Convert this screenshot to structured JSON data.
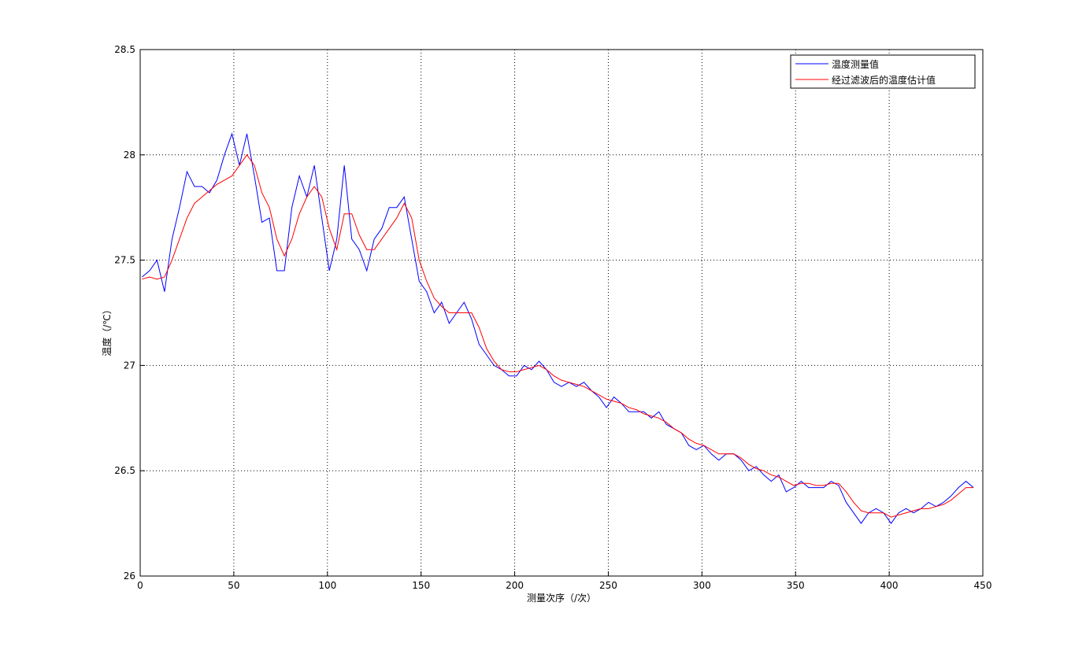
{
  "chart_data": {
    "type": "line",
    "xlabel": "测量次序（/次）",
    "ylabel": "温度（/℃）",
    "x": [
      1,
      5,
      9,
      13,
      17,
      21,
      25,
      29,
      33,
      37,
      41,
      45,
      49,
      53,
      57,
      61,
      65,
      69,
      73,
      77,
      81,
      85,
      89,
      93,
      97,
      101,
      105,
      109,
      113,
      117,
      121,
      125,
      129,
      133,
      137,
      141,
      145,
      149,
      153,
      157,
      161,
      165,
      169,
      173,
      177,
      181,
      185,
      189,
      193,
      197,
      201,
      205,
      209,
      213,
      217,
      221,
      225,
      229,
      233,
      237,
      241,
      245,
      249,
      253,
      257,
      261,
      265,
      269,
      273,
      277,
      281,
      285,
      289,
      293,
      297,
      301,
      305,
      309,
      313,
      317,
      321,
      325,
      329,
      333,
      337,
      341,
      345,
      349,
      353,
      357,
      361,
      365,
      369,
      373,
      377,
      381,
      385,
      389,
      393,
      397,
      401,
      405,
      409,
      413,
      417,
      421,
      425,
      429,
      433,
      437,
      441,
      445
    ],
    "series": [
      {
        "name": "温度测量值",
        "color": "#0000ff",
        "values": [
          27.42,
          27.45,
          27.5,
          27.35,
          27.6,
          27.75,
          27.92,
          27.85,
          27.85,
          27.82,
          27.88,
          28.0,
          28.1,
          27.95,
          28.1,
          27.9,
          27.68,
          27.7,
          27.45,
          27.45,
          27.75,
          27.9,
          27.8,
          27.95,
          27.7,
          27.45,
          27.6,
          27.95,
          27.6,
          27.55,
          27.45,
          27.6,
          27.65,
          27.75,
          27.75,
          27.8,
          27.6,
          27.4,
          27.35,
          27.25,
          27.3,
          27.2,
          27.25,
          27.3,
          27.22,
          27.1,
          27.05,
          27.0,
          26.98,
          26.95,
          26.95,
          27.0,
          26.98,
          27.02,
          26.98,
          26.92,
          26.9,
          26.92,
          26.9,
          26.92,
          26.88,
          26.85,
          26.8,
          26.85,
          26.82,
          26.78,
          26.78,
          26.78,
          26.75,
          26.78,
          26.72,
          26.7,
          26.68,
          26.62,
          26.6,
          26.62,
          26.58,
          26.55,
          26.58,
          26.58,
          26.55,
          26.5,
          26.52,
          26.48,
          26.45,
          26.48,
          26.4,
          26.42,
          26.45,
          26.42,
          26.42,
          26.42,
          26.45,
          26.43,
          26.35,
          26.3,
          26.25,
          26.3,
          26.32,
          26.3,
          26.25,
          26.3,
          26.32,
          26.3,
          26.32,
          26.35,
          26.33,
          26.35,
          26.38,
          26.42,
          26.45,
          26.42
        ]
      },
      {
        "name": "经过滤波后的温度估计值",
        "color": "#ff0000",
        "values": [
          27.41,
          27.42,
          27.41,
          27.42,
          27.5,
          27.6,
          27.7,
          27.77,
          27.8,
          27.83,
          27.86,
          27.88,
          27.9,
          27.95,
          28.0,
          27.95,
          27.82,
          27.75,
          27.6,
          27.52,
          27.6,
          27.72,
          27.8,
          27.85,
          27.8,
          27.65,
          27.55,
          27.72,
          27.72,
          27.62,
          27.55,
          27.55,
          27.6,
          27.65,
          27.7,
          27.77,
          27.7,
          27.5,
          27.4,
          27.32,
          27.28,
          27.25,
          27.25,
          27.25,
          27.25,
          27.18,
          27.08,
          27.02,
          26.98,
          26.97,
          26.97,
          26.98,
          26.99,
          27.0,
          26.98,
          26.95,
          26.93,
          26.92,
          26.91,
          26.9,
          26.88,
          26.86,
          26.84,
          26.83,
          26.82,
          26.8,
          26.79,
          26.77,
          26.76,
          26.75,
          26.73,
          26.7,
          26.68,
          26.65,
          26.63,
          26.62,
          26.6,
          26.58,
          26.58,
          26.58,
          26.56,
          26.53,
          26.51,
          26.5,
          26.48,
          26.47,
          26.45,
          26.43,
          26.44,
          26.44,
          26.43,
          26.43,
          26.44,
          26.44,
          26.4,
          26.35,
          26.31,
          26.3,
          26.3,
          26.3,
          26.28,
          26.29,
          26.3,
          26.31,
          26.32,
          26.32,
          26.33,
          26.34,
          26.36,
          26.39,
          26.42,
          26.42
        ]
      }
    ],
    "xlim": [
      0,
      450
    ],
    "xticks": [
      0,
      50,
      100,
      150,
      200,
      250,
      300,
      350,
      400,
      450
    ],
    "ylim": [
      26,
      28.5
    ],
    "yticks": [
      26,
      26.5,
      27,
      27.5,
      28,
      28.5
    ],
    "grid": true,
    "legend": "top-right"
  }
}
